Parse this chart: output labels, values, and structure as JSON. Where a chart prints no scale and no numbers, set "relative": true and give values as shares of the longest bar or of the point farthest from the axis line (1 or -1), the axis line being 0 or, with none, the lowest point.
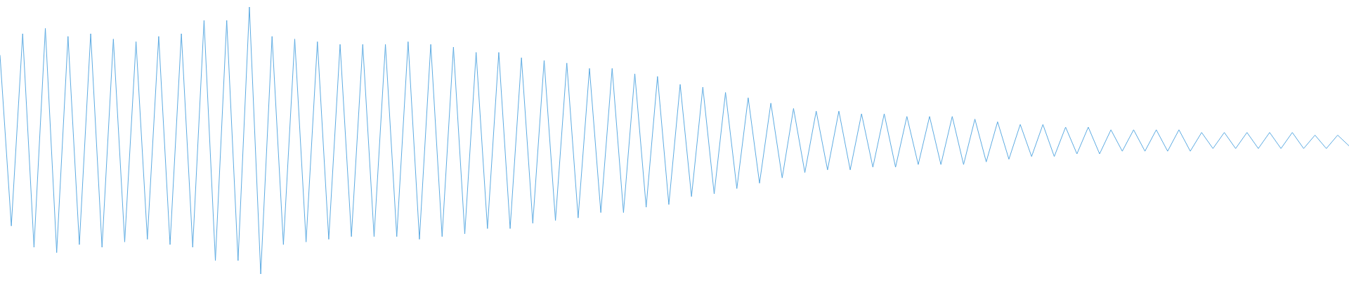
{
  "chart_data": {
    "type": "line",
    "relative": true,
    "marker": "none",
    "grid": false,
    "tick_labels": false,
    "categories": [
      null,
      null,
      null,
      null,
      null,
      null,
      null,
      null,
      null,
      null,
      null,
      null,
      null,
      null,
      null,
      null,
      null,
      null,
      null,
      null,
      null,
      null,
      null,
      null,
      null,
      null,
      null,
      null,
      null,
      null,
      null,
      null,
      null,
      null,
      null,
      null,
      null,
      null,
      null,
      null,
      null,
      null,
      null,
      null,
      null,
      null,
      null,
      null,
      null,
      null,
      null,
      null,
      null,
      null,
      null,
      null,
      null,
      null,
      null,
      null,
      null,
      null,
      null,
      null,
      null,
      null,
      null,
      null,
      null,
      null,
      null,
      null,
      null,
      null,
      null,
      null,
      null,
      null,
      null,
      null,
      null,
      null,
      null,
      null,
      null,
      null,
      null,
      null,
      null,
      null,
      null,
      null,
      null,
      null,
      null,
      null,
      null,
      null,
      null,
      null,
      null,
      null,
      null,
      null,
      null,
      null,
      null,
      null,
      null,
      null,
      null,
      null,
      null,
      null,
      null,
      null,
      null,
      null,
      null,
      null
    ],
    "series": [
      {
        "color": "#5dabe2",
        "values": [
          0.82,
          0.18,
          0.9,
          0.1,
          0.92,
          0.08,
          0.89,
          0.11,
          0.9,
          0.1,
          0.88,
          0.12,
          0.87,
          0.13,
          0.89,
          0.11,
          0.9,
          0.1,
          0.95,
          0.05,
          0.95,
          0.05,
          1.0,
          0.0,
          0.89,
          0.11,
          0.88,
          0.12,
          0.87,
          0.13,
          0.86,
          0.14,
          0.86,
          0.14,
          0.86,
          0.14,
          0.87,
          0.13,
          0.86,
          0.14,
          0.85,
          0.15,
          0.83,
          0.17,
          0.83,
          0.17,
          0.81,
          0.19,
          0.8,
          0.2,
          0.79,
          0.21,
          0.77,
          0.23,
          0.77,
          0.23,
          0.75,
          0.25,
          0.74,
          0.26,
          0.71,
          0.29,
          0.7,
          0.3,
          0.68,
          0.32,
          0.66,
          0.34,
          0.64,
          0.36,
          0.62,
          0.38,
          0.61,
          0.39,
          0.61,
          0.39,
          0.6,
          0.4,
          0.6,
          0.4,
          0.59,
          0.41,
          0.59,
          0.41,
          0.59,
          0.41,
          0.58,
          0.42,
          0.57,
          0.43,
          0.56,
          0.44,
          0.56,
          0.44,
          0.55,
          0.45,
          0.55,
          0.45,
          0.54,
          0.46,
          0.54,
          0.46,
          0.54,
          0.46,
          0.54,
          0.46,
          0.53,
          0.47,
          0.53,
          0.47,
          0.53,
          0.47,
          0.53,
          0.47,
          0.53,
          0.47,
          0.52,
          0.47,
          0.52,
          0.48
        ]
      }
    ]
  }
}
